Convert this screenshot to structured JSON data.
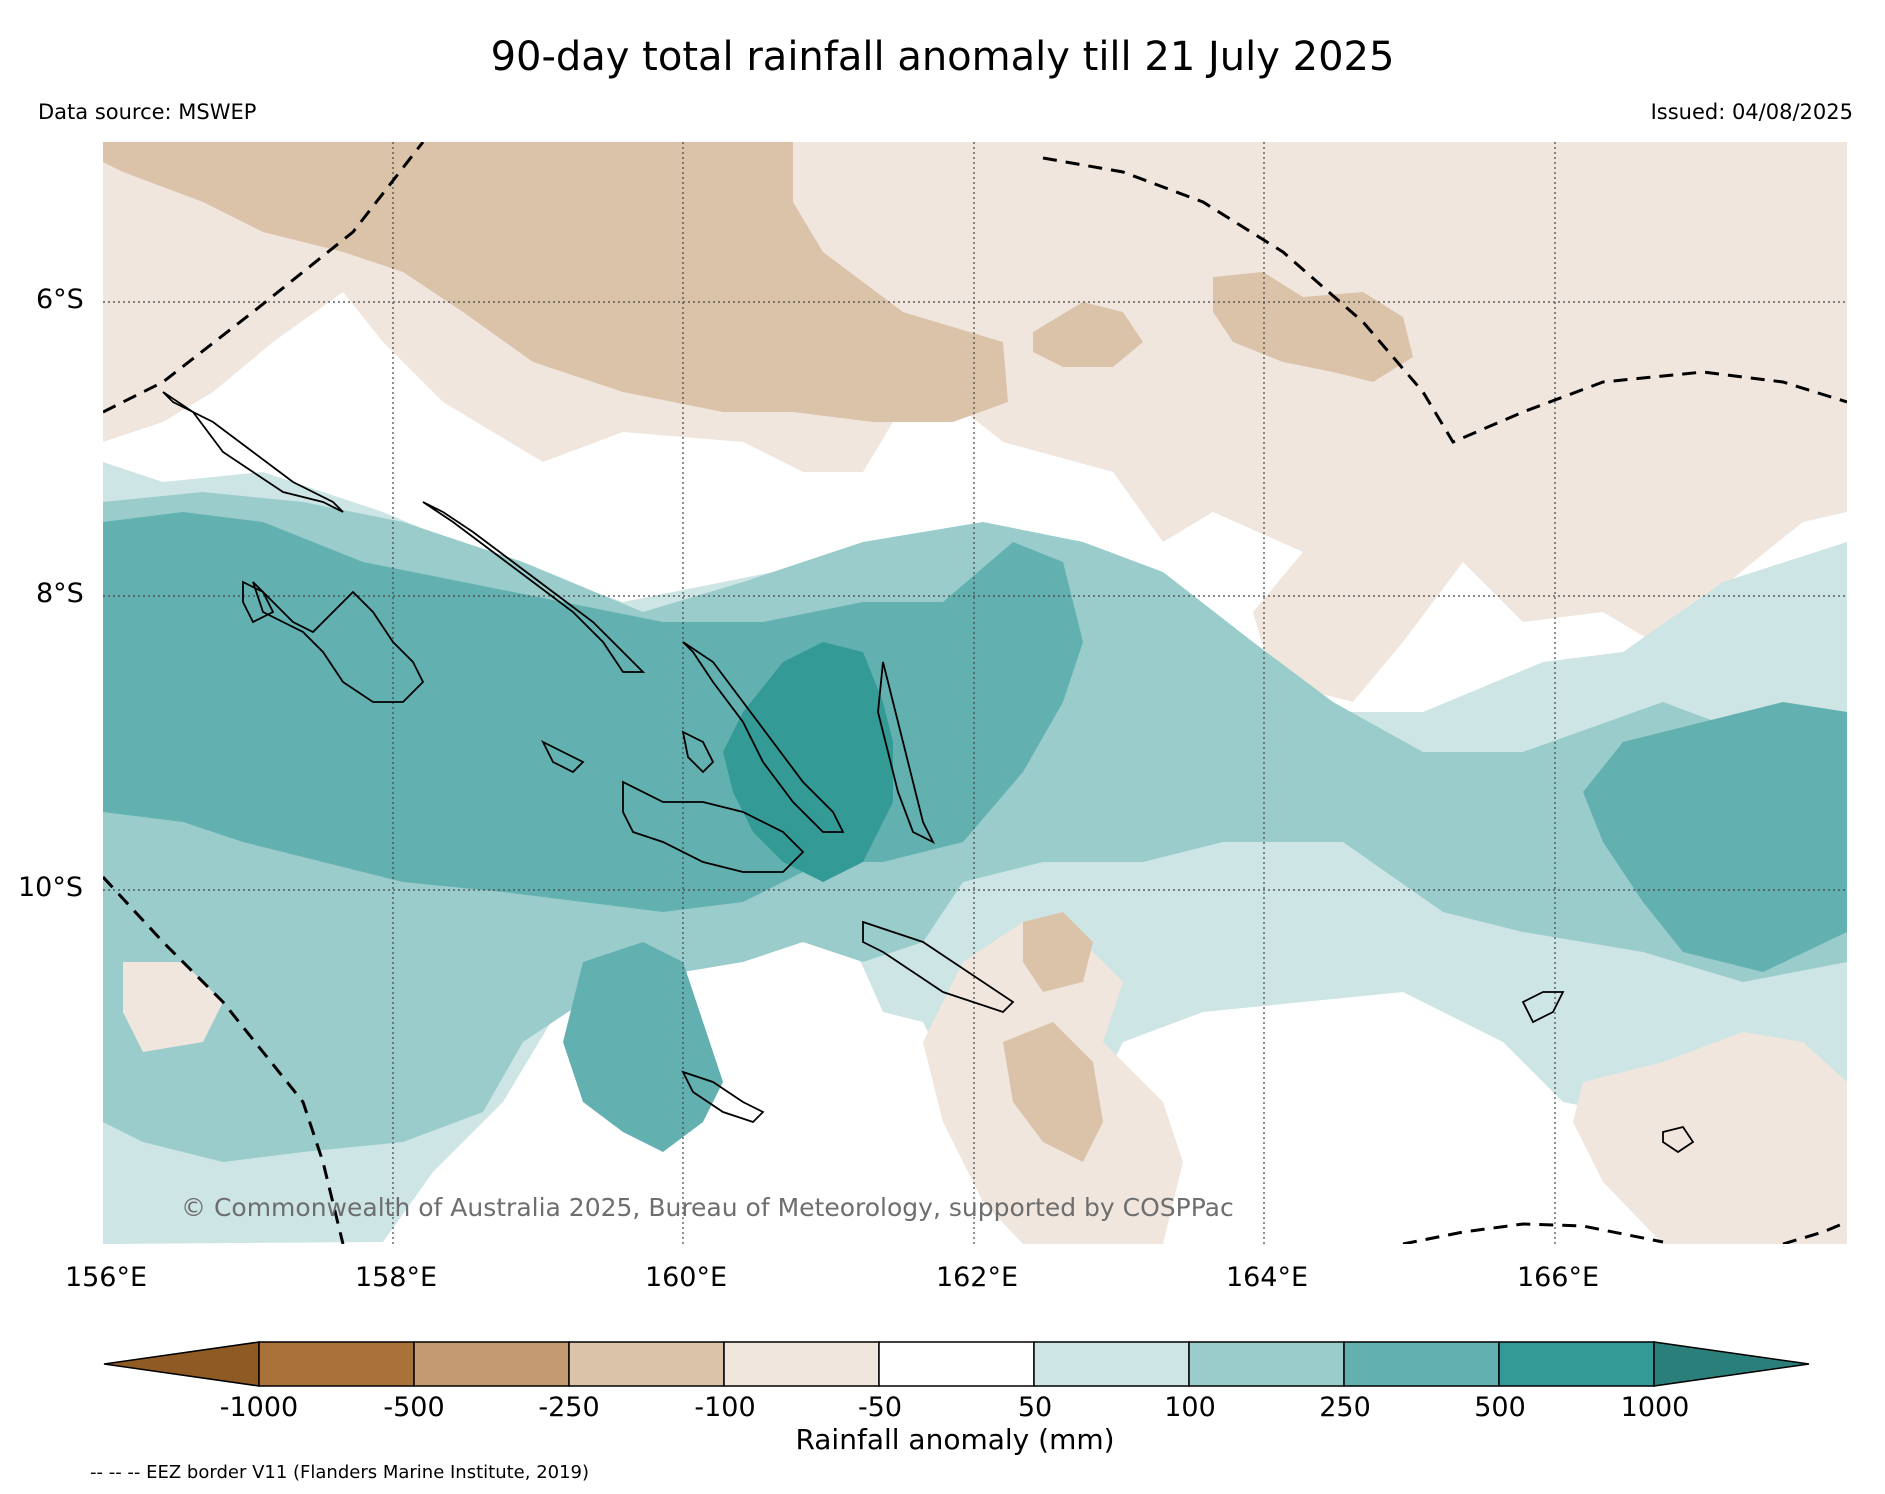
{
  "title": "90-day total rainfall anomaly till 21 July 2025",
  "data_source": "Data source: MSWEP",
  "issued": "Issued: 04/08/2025",
  "copyright": "© Commonwealth of Australia 2025, Bureau of Meteorology, supported by COSPPac",
  "map": {
    "lat_labels": [
      "6°S",
      "8°S",
      "10°S"
    ],
    "lon_labels": [
      "156°E",
      "158°E",
      "160°E",
      "162°E",
      "164°E",
      "166°E"
    ],
    "gridlines": "dotted"
  },
  "colorbar": {
    "label": "Rainfall anomaly (mm)",
    "ticks": [
      "-1000",
      "-500",
      "-250",
      "-100",
      "-50",
      "50",
      "100",
      "250",
      "500",
      "1000"
    ],
    "colors": [
      "#8f5a24",
      "#a87239",
      "#c49a70",
      "#dbc3aa",
      "#f0e6de",
      "#ffffff",
      "#cde5e4",
      "#9acccc",
      "#63b0b0",
      "#339a96",
      "#2a7f7b"
    ]
  },
  "legend_note": "-- -- -- EEZ border V11 (Flanders Marine Institute, 2019)"
}
